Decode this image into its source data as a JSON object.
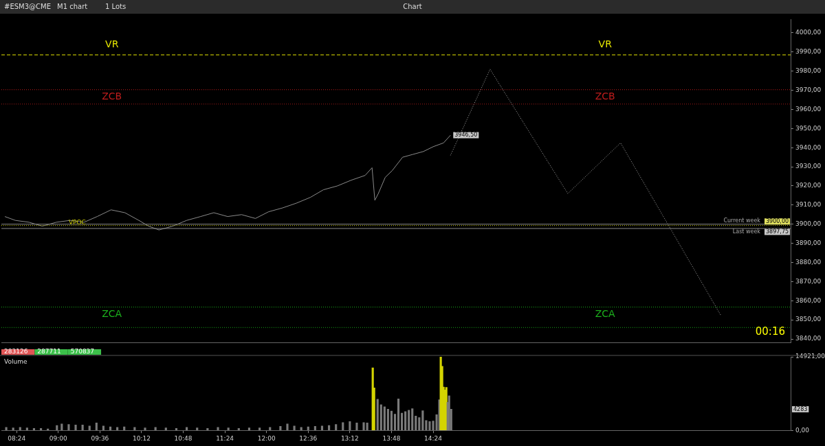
{
  "chart_data": [
    {
      "type": "line",
      "title": "Chart",
      "xlim": [
        8.18,
        19.55
      ],
      "ylim": [
        3838,
        4007
      ],
      "yticks": [
        {
          "value": 3840,
          "label": "3840,00"
        },
        {
          "value": 3850,
          "label": "3850,00"
        },
        {
          "value": 3860,
          "label": "3860,00"
        },
        {
          "value": 3870,
          "label": "3870,00"
        },
        {
          "value": 3880,
          "label": "3880,00"
        },
        {
          "value": 3890,
          "label": "3890,00"
        },
        {
          "value": 3900,
          "label": "3900,00"
        },
        {
          "value": 3910,
          "label": "3910,00"
        },
        {
          "value": 3920,
          "label": "3920,00"
        },
        {
          "value": 3930,
          "label": "3930,00"
        },
        {
          "value": 3940,
          "label": "3940,00"
        },
        {
          "value": 3950,
          "label": "3950,00"
        },
        {
          "value": 3960,
          "label": "3960,00"
        },
        {
          "value": 3970,
          "label": "3970,00"
        },
        {
          "value": 3980,
          "label": "3980,00"
        },
        {
          "value": 3990,
          "label": "3990,00"
        },
        {
          "value": 4000,
          "label": "4000,00"
        }
      ],
      "tick_labels": "y",
      "grid": false,
      "legend": false,
      "marker": "none",
      "series": [
        {
          "color": "#8a8a8a",
          "line_style": "solid",
          "x": [
            8.23,
            8.38,
            8.58,
            8.77,
            8.97,
            9.17,
            9.37,
            9.56,
            9.76,
            9.96,
            10.16,
            10.3,
            10.45,
            10.65,
            10.85,
            11.05,
            11.24,
            11.44,
            11.64,
            11.84,
            12.03,
            12.23,
            12.43,
            12.63,
            12.82,
            13.02,
            13.22,
            13.42,
            13.52,
            13.56,
            13.61,
            13.71,
            13.81,
            13.96,
            14.11,
            14.26,
            14.4,
            14.55,
            14.65
          ],
          "values": [
            3904,
            3902,
            3901,
            3899,
            3901,
            3902,
            3901,
            3904,
            3907.5,
            3906,
            3902,
            3899,
            3897,
            3899,
            3902,
            3904,
            3906,
            3904,
            3905,
            3903,
            3906.5,
            3908.5,
            3911,
            3914,
            3918,
            3920,
            3923,
            3925.5,
            3929.5,
            3912.5,
            3916,
            3924.5,
            3928,
            3935,
            3936.5,
            3938,
            3940.5,
            3942.5,
            3946.5
          ],
          "value_labels": [
            null,
            null,
            null,
            null,
            null,
            null,
            null,
            null,
            null,
            null,
            null,
            null,
            null,
            null,
            null,
            null,
            null,
            null,
            null,
            null,
            null,
            null,
            null,
            null,
            null,
            null,
            null,
            null,
            null,
            null,
            null,
            null,
            null,
            null,
            null,
            null,
            null,
            null,
            "3946,50"
          ]
        },
        {
          "color": "#aaaaaa",
          "line_style": "dotted",
          "x": [
            14.65,
            15.22,
            16.34,
            17.1,
            18.55
          ],
          "values": [
            3936,
            3981,
            3916,
            3942.5,
            3852
          ]
        }
      ],
      "ref_lines": [
        {
          "axis": "y",
          "value": 3988.5,
          "color": "#e6e600",
          "line_style": "dashed",
          "label": "VR"
        },
        {
          "axis": "y",
          "value": 3970.3,
          "color": "#c01c1c",
          "line_style": "dotted",
          "label": "ZCB"
        },
        {
          "axis": "y",
          "value": 3962.8,
          "color": "#a01818",
          "line_style": "dotted"
        },
        {
          "axis": "y",
          "value": 3856.7,
          "color": "#1cb01c",
          "line_style": "dotted",
          "label": "ZCA"
        },
        {
          "axis": "y",
          "value": 3846,
          "color": "#18a018",
          "line_style": "dotted"
        },
        {
          "axis": "y",
          "value": 3899.3,
          "color": "#c8c800",
          "line_style": "dotted"
        },
        {
          "axis": "y",
          "value": 3900,
          "color": "#888888",
          "line_style": "solid",
          "label": "Current week"
        },
        {
          "axis": "y",
          "value": 3897.75,
          "color": "#888888",
          "line_style": "solid",
          "label": "Last week"
        }
      ],
      "annotations": [
        "#ESM3@CME",
        "M1 chart",
        "1 Lots",
        "00:16",
        "3900,00",
        "3897,75",
        {
          "text": "VPOC",
          "x": 9.15,
          "y": 3899.3
        }
      ]
    },
    {
      "type": "bar",
      "title": "Volume",
      "xlim": [
        8.18,
        19.55
      ],
      "ylim": [
        0,
        14921
      ],
      "xticks": [
        {
          "value": 8.4,
          "label": "08:24"
        },
        {
          "value": 9,
          "label": "09:00"
        },
        {
          "value": 9.6,
          "label": "09:36"
        },
        {
          "value": 10.2,
          "label": "10:12"
        },
        {
          "value": 10.8,
          "label": "10:48"
        },
        {
          "value": 11.4,
          "label": "11:24"
        },
        {
          "value": 12,
          "label": "12:00"
        },
        {
          "value": 12.6,
          "label": "12:36"
        },
        {
          "value": 13.2,
          "label": "13:12"
        },
        {
          "value": 13.8,
          "label": "13:48"
        },
        {
          "value": 14.4,
          "label": "14:24"
        }
      ],
      "yticks": [
        {
          "value": 0,
          "label": "0,00"
        },
        {
          "value": 14921,
          "label": "14921,00"
        }
      ],
      "grid": false,
      "legend": false,
      "x": [
        8.25,
        8.35,
        8.45,
        8.55,
        8.65,
        8.75,
        8.85,
        8.98,
        9.05,
        9.15,
        9.25,
        9.35,
        9.45,
        9.55,
        9.65,
        9.75,
        9.85,
        9.95,
        10.1,
        10.25,
        10.4,
        10.55,
        10.7,
        10.85,
        11,
        11.15,
        11.3,
        11.45,
        11.6,
        11.75,
        11.9,
        12.05,
        12.2,
        12.3,
        12.4,
        12.5,
        12.6,
        12.7,
        12.8,
        12.9,
        13,
        13.1,
        13.2,
        13.3,
        13.4,
        13.45,
        13.53,
        13.55,
        13.6,
        13.65,
        13.7,
        13.75,
        13.8,
        13.85,
        13.9,
        13.95,
        14,
        14.05,
        14.1,
        14.15,
        14.2,
        14.25,
        14.3,
        14.35,
        14.4,
        14.45,
        14.49,
        14.51,
        14.53,
        14.55,
        14.57,
        14.59,
        14.61,
        14.63,
        14.66
      ],
      "values": [
        600,
        500,
        600,
        500,
        400,
        400,
        300,
        1000,
        1300,
        1200,
        1100,
        1100,
        900,
        1500,
        900,
        700,
        600,
        700,
        600,
        500,
        600,
        500,
        400,
        600,
        500,
        400,
        600,
        500,
        400,
        500,
        500,
        600,
        800,
        1300,
        900,
        600,
        700,
        800,
        900,
        1000,
        1200,
        1600,
        1800,
        1500,
        1600,
        1500,
        12700,
        8600,
        6300,
        5200,
        4800,
        4300,
        3900,
        3300,
        6400,
        3500,
        3800,
        4100,
        4400,
        2900,
        2600,
        4000,
        2000,
        1800,
        1900,
        3200,
        6200,
        14900,
        13000,
        8800,
        8200,
        8700,
        5700,
        7000,
        4283
      ],
      "colors": [
        "#7a7a7a",
        "#7a7a7a",
        "#7a7a7a",
        "#7a7a7a",
        "#7a7a7a",
        "#7a7a7a",
        "#7a7a7a",
        "#7a7a7a",
        "#7a7a7a",
        "#7a7a7a",
        "#7a7a7a",
        "#7a7a7a",
        "#7a7a7a",
        "#7a7a7a",
        "#7a7a7a",
        "#7a7a7a",
        "#7a7a7a",
        "#7a7a7a",
        "#7a7a7a",
        "#7a7a7a",
        "#7a7a7a",
        "#7a7a7a",
        "#7a7a7a",
        "#7a7a7a",
        "#7a7a7a",
        "#7a7a7a",
        "#7a7a7a",
        "#7a7a7a",
        "#7a7a7a",
        "#7a7a7a",
        "#7a7a7a",
        "#7a7a7a",
        "#7a7a7a",
        "#7a7a7a",
        "#7a7a7a",
        "#7a7a7a",
        "#7a7a7a",
        "#7a7a7a",
        "#7a7a7a",
        "#7a7a7a",
        "#7a7a7a",
        "#7a7a7a",
        "#7a7a7a",
        "#7a7a7a",
        "#7a7a7a",
        "#7a7a7a",
        "#d4d400",
        "#d4d400",
        "#7a7a7a",
        "#7a7a7a",
        "#7a7a7a",
        "#7a7a7a",
        "#7a7a7a",
        "#7a7a7a",
        "#7a7a7a",
        "#7a7a7a",
        "#7a7a7a",
        "#7a7a7a",
        "#7a7a7a",
        "#7a7a7a",
        "#7a7a7a",
        "#7a7a7a",
        "#7a7a7a",
        "#7a7a7a",
        "#7a7a7a",
        "#7a7a7a",
        "#7a7a7a",
        "#d4d400",
        "#d4d400",
        "#d4d400",
        "#d4d400",
        "#d4d400",
        "#7a7a7a",
        "#7a7a7a",
        "#7a7a7a"
      ],
      "annotations": [
        "283126",
        "287711",
        "570837",
        "4283"
      ]
    }
  ]
}
